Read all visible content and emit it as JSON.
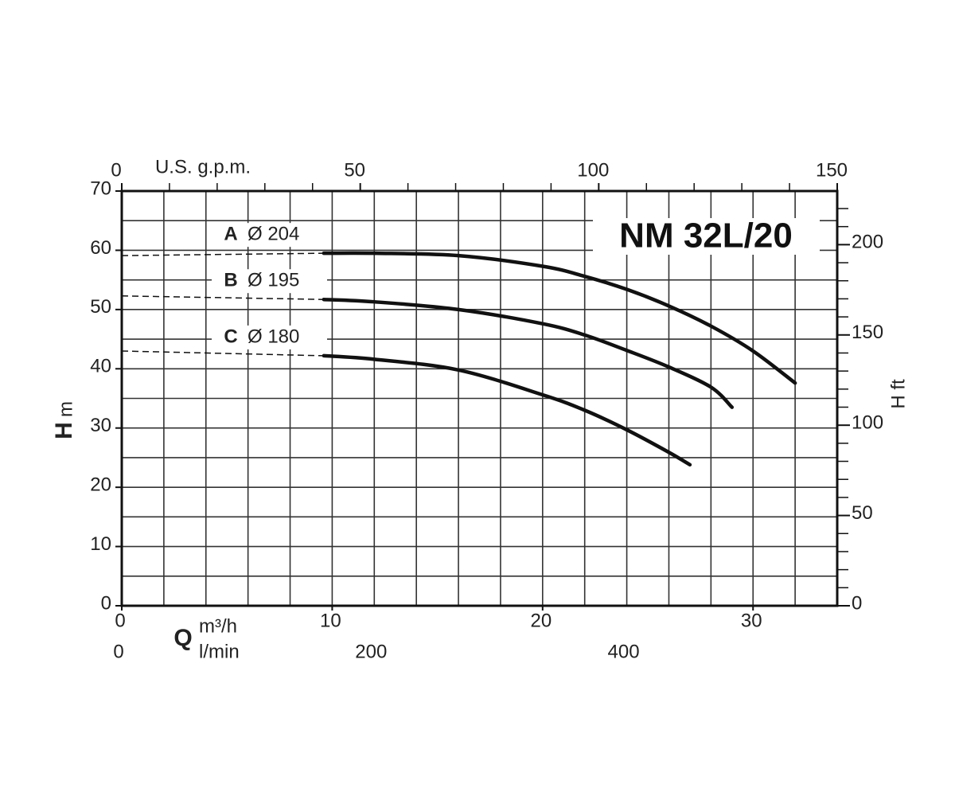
{
  "chart_data": {
    "type": "line",
    "title": "NM 32L/20",
    "x_label": "Q",
    "x_unit": "m³/h",
    "x3_unit": "l/min",
    "x2_label": "U.S. g.p.m.",
    "y_label": "H",
    "y_unit": "m",
    "y2_label": "H ft",
    "color": "#111111",
    "grid": true,
    "xlim": [
      0,
      34
    ],
    "xticks": [
      0,
      10,
      20,
      30
    ],
    "xgrid": [
      2,
      4,
      6,
      8,
      10,
      12,
      14,
      16,
      18,
      20,
      22,
      24,
      26,
      28,
      30,
      32
    ],
    "ylim": [
      0,
      70
    ],
    "yticks": [
      0,
      10,
      20,
      30,
      40,
      50,
      60,
      70
    ],
    "ygrid": [
      5,
      10,
      15,
      20,
      25,
      30,
      35,
      40,
      45,
      50,
      55,
      60,
      65
    ],
    "x2lim": [
      0,
      150
    ],
    "x2ticks": [
      0,
      50,
      100,
      150
    ],
    "x2minor": [
      10,
      20,
      30,
      40,
      60,
      70,
      80,
      90,
      110,
      120,
      130,
      140
    ],
    "x3lim": [
      0,
      566.7
    ],
    "x3ticks": [
      0,
      200,
      400
    ],
    "y2lim": [
      0,
      229.7
    ],
    "y2ticks": [
      0,
      50,
      100,
      150,
      200
    ],
    "y2minor": [
      10,
      20,
      30,
      40,
      60,
      70,
      80,
      90,
      110,
      120,
      130,
      140,
      160,
      170,
      180,
      190,
      210,
      220
    ],
    "series": [
      {
        "name": "A",
        "diameter": "Ø 204",
        "x": [
          9.6,
          12,
          16,
          20,
          22,
          24,
          26,
          28,
          30,
          32
        ],
        "values": [
          59.5,
          59.5,
          59.1,
          57.3,
          55.6,
          53.4,
          50.6,
          47.2,
          43.0,
          37.6
        ],
        "extension": {
          "x": [
            0,
            9.6
          ],
          "values": [
            59.1,
            59.5
          ]
        }
      },
      {
        "name": "B",
        "diameter": "Ø 195",
        "x": [
          9.6,
          12,
          16,
          20,
          22,
          24,
          26,
          28,
          29
        ],
        "values": [
          51.7,
          51.3,
          50.0,
          47.6,
          45.7,
          43.1,
          40.3,
          36.9,
          33.5
        ],
        "extension": {
          "x": [
            0,
            9.6
          ],
          "values": [
            52.3,
            51.7
          ]
        }
      },
      {
        "name": "C",
        "diameter": "Ø 180",
        "x": [
          9.6,
          12,
          16,
          20,
          22,
          24,
          26,
          27
        ],
        "values": [
          42.2,
          41.6,
          39.8,
          35.6,
          33.0,
          29.7,
          25.9,
          23.8
        ],
        "extension": {
          "x": [
            0,
            9.6
          ],
          "values": [
            43.0,
            42.2
          ]
        }
      }
    ]
  }
}
